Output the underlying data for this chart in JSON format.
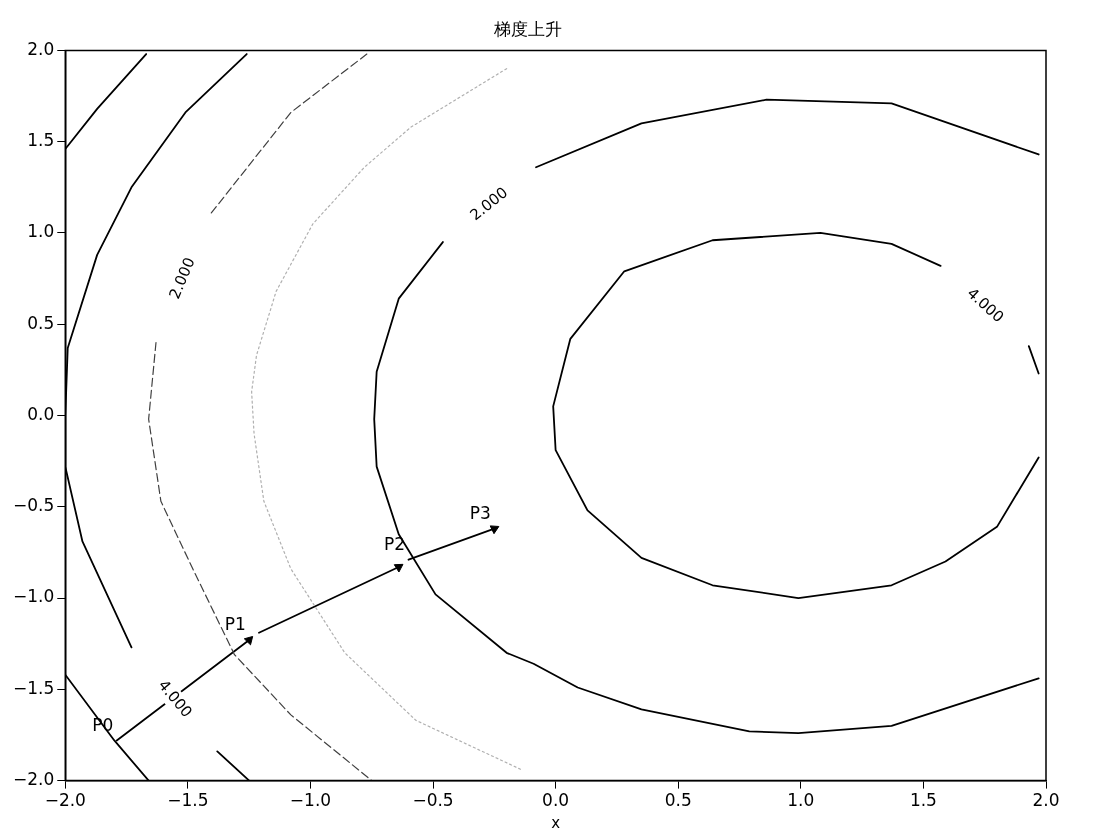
{
  "chart_data": {
    "type": "line",
    "title": "梯度上升",
    "xlabel": "x",
    "xlim": [
      -2,
      2
    ],
    "ylim": [
      -2,
      2
    ],
    "xticks": [
      {
        "value": -2,
        "label": "−2.0"
      },
      {
        "value": -1.5,
        "label": "−1.5"
      },
      {
        "value": -1,
        "label": "−1.0"
      },
      {
        "value": -0.5,
        "label": "−0.5"
      },
      {
        "value": 0,
        "label": "0.0"
      },
      {
        "value": 0.5,
        "label": "0.5"
      },
      {
        "value": 1,
        "label": "1.0"
      },
      {
        "value": 1.5,
        "label": "1.5"
      },
      {
        "value": 2,
        "label": "2.0"
      }
    ],
    "yticks": [
      {
        "value": -2,
        "label": "−2.0"
      },
      {
        "value": -1.5,
        "label": "−1.5"
      },
      {
        "value": -1,
        "label": "−1.0"
      },
      {
        "value": -0.5,
        "label": "−0.5"
      },
      {
        "value": 0,
        "label": "0.0"
      },
      {
        "value": 0.5,
        "label": "0.5"
      },
      {
        "value": 1,
        "label": "1.0"
      },
      {
        "value": 1.5,
        "label": "1.5"
      },
      {
        "value": 2,
        "label": "2.0"
      }
    ],
    "grid": false,
    "legend": false,
    "marker": "none",
    "series": [
      {
        "color": "#000000",
        "line_style": "solid",
        "x": [
          1.97,
          1.93,
          null,
          1.57,
          1.37,
          1.08,
          0.64,
          0.28,
          0.06,
          -0.01,
          0.0,
          0.13,
          0.35,
          0.64,
          0.99,
          1.37,
          1.59,
          1.8,
          1.97
        ],
        "values": [
          0.23,
          0.38,
          null,
          0.82,
          0.94,
          1.0,
          0.96,
          0.79,
          0.42,
          0.05,
          -0.19,
          -0.52,
          -0.78,
          -0.93,
          -1.0,
          -0.93,
          -0.8,
          -0.61,
          -0.23
        ]
      },
      {
        "color": "#000000",
        "line_style": "solid",
        "x": [
          1.97,
          1.37,
          0.86,
          0.35,
          -0.08,
          null,
          -0.46,
          -0.64,
          -0.73,
          -0.74,
          -0.73,
          -0.64,
          -0.49,
          -0.2,
          -0.09,
          0.09,
          0.35,
          0.79,
          0.99,
          1.37,
          1.97
        ],
        "values": [
          1.43,
          1.71,
          1.73,
          1.6,
          1.36,
          null,
          0.95,
          0.64,
          0.24,
          -0.02,
          -0.28,
          -0.65,
          -0.98,
          -1.3,
          -1.36,
          -1.49,
          -1.61,
          -1.73,
          -1.74,
          -1.7,
          -1.44
        ]
      },
      {
        "color": "#b0b0b0",
        "line_style": "dotted",
        "x": [
          -0.2,
          -0.59,
          -0.78,
          -0.99,
          -1.14,
          -1.22,
          -1.24,
          -1.23,
          -1.19,
          -1.08,
          -0.86,
          -0.57,
          -0.14
        ],
        "values": [
          1.9,
          1.58,
          1.36,
          1.05,
          0.68,
          0.33,
          0.13,
          -0.1,
          -0.47,
          -0.84,
          -1.3,
          -1.67,
          -1.94
        ]
      },
      {
        "color": "#404040",
        "line_style": "dashed",
        "x": [
          -0.77,
          -1.08,
          -1.41,
          null,
          -1.63,
          -1.66,
          -1.61,
          -1.48,
          -1.31,
          -1.08,
          -0.75
        ],
        "values": [
          1.98,
          1.66,
          1.1,
          null,
          0.4,
          -0.02,
          -0.47,
          -0.84,
          -1.31,
          -1.64,
          -2.0
        ]
      },
      {
        "color": "#000000",
        "line_style": "solid",
        "x": [
          -1.26,
          -1.51,
          -1.73,
          -1.87,
          -1.99,
          -2.0,
          -2.0,
          -1.93,
          -1.83,
          -1.73,
          null,
          -1.38,
          -1.25
        ],
        "values": [
          1.98,
          1.66,
          1.25,
          0.88,
          0.37,
          0.0,
          -0.28,
          -0.69,
          -0.98,
          -1.27,
          null,
          -1.84,
          -2.0
        ]
      },
      {
        "color": "#000000",
        "line_style": "solid",
        "x": [
          -1.67,
          -1.87,
          -2.0,
          null,
          -2.0,
          -1.8,
          -1.66
        ],
        "values": [
          1.98,
          1.68,
          1.46,
          null,
          -1.42,
          -1.78,
          -2.0
        ]
      },
      {
        "color": "#000000",
        "line_style": "solid",
        "marker": "triangle",
        "x": [
          -1.79,
          -1.25,
          null,
          -1.21,
          -0.64,
          null,
          -0.6,
          -0.25
        ],
        "values": [
          -1.78,
          -1.23,
          null,
          -1.19,
          -0.83,
          null,
          -0.79,
          -0.62
        ]
      }
    ],
    "annotations": [
      {
        "text": "P0",
        "x": -1.79,
        "y": -1.78
      },
      {
        "text": "P1",
        "x": -1.25,
        "y": -1.23
      },
      {
        "text": "P2",
        "x": -0.6,
        "y": -0.79
      },
      {
        "text": "P3",
        "x": -0.25,
        "y": -0.62
      },
      {
        "text": "2.000",
        "x": -1.41,
        "y": 1.1
      },
      {
        "text": "2.000",
        "x": -0.08,
        "y": 1.36
      },
      {
        "text": "4.000",
        "x": 1.93,
        "y": 0.38
      },
      {
        "text": "4.000",
        "x": -1.73,
        "y": -1.27
      }
    ]
  }
}
